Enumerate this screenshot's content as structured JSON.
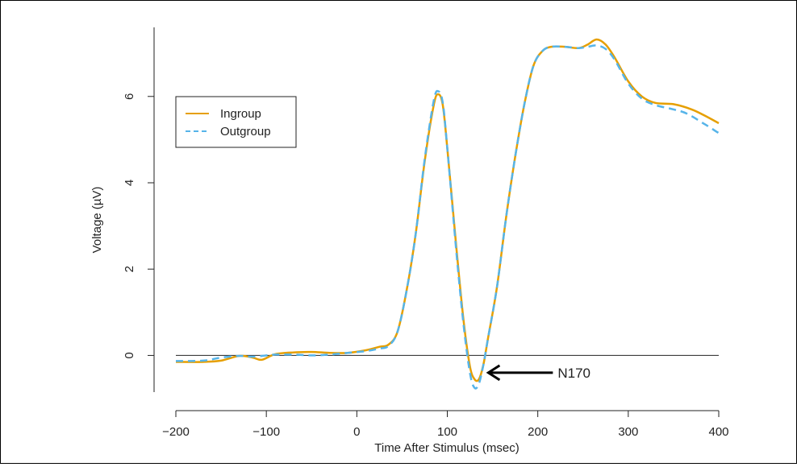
{
  "chart_data": {
    "type": "line",
    "xlabel": "Time After Stimulus (msec)",
    "ylabel": "Voltage (µV)",
    "xlim": [
      -200,
      400
    ],
    "ylim": [
      -0.85,
      7.6
    ],
    "x_ticks": [
      -200,
      -100,
      0,
      100,
      200,
      300,
      400
    ],
    "y_ticks": [
      0,
      2,
      4,
      6
    ],
    "x_tick_labels": [
      "−200",
      "−100",
      "0",
      "100",
      "200",
      "300",
      "400"
    ],
    "y_tick_labels": [
      "0",
      "2",
      "4",
      "6"
    ],
    "baseline_y": 0,
    "legend_position": "top-left",
    "annotation": {
      "text": "N170",
      "arrow_to": [
        140,
        -0.4
      ]
    },
    "series": [
      {
        "name": "Ingroup",
        "color": "#E69F00",
        "style": "solid",
        "points": [
          [
            -200,
            -0.15
          ],
          [
            -170,
            -0.15
          ],
          [
            -150,
            -0.12
          ],
          [
            -130,
            -0.01
          ],
          [
            -115,
            -0.05
          ],
          [
            -105,
            -0.1
          ],
          [
            -90,
            0.03
          ],
          [
            -70,
            0.07
          ],
          [
            -50,
            0.08
          ],
          [
            -30,
            0.06
          ],
          [
            -10,
            0.06
          ],
          [
            10,
            0.12
          ],
          [
            25,
            0.2
          ],
          [
            35,
            0.25
          ],
          [
            45,
            0.55
          ],
          [
            55,
            1.5
          ],
          [
            65,
            2.8
          ],
          [
            75,
            4.5
          ],
          [
            85,
            5.8
          ],
          [
            90,
            6.05
          ],
          [
            95,
            5.8
          ],
          [
            100,
            4.8
          ],
          [
            110,
            2.5
          ],
          [
            118,
            0.8
          ],
          [
            125,
            -0.25
          ],
          [
            130,
            -0.55
          ],
          [
            135,
            -0.55
          ],
          [
            140,
            -0.2
          ],
          [
            145,
            0.4
          ],
          [
            155,
            1.6
          ],
          [
            165,
            3.2
          ],
          [
            175,
            4.6
          ],
          [
            185,
            5.8
          ],
          [
            195,
            6.7
          ],
          [
            205,
            7.05
          ],
          [
            215,
            7.15
          ],
          [
            230,
            7.15
          ],
          [
            245,
            7.12
          ],
          [
            255,
            7.2
          ],
          [
            265,
            7.32
          ],
          [
            275,
            7.2
          ],
          [
            285,
            6.9
          ],
          [
            300,
            6.35
          ],
          [
            315,
            6.0
          ],
          [
            330,
            5.85
          ],
          [
            350,
            5.82
          ],
          [
            370,
            5.7
          ],
          [
            385,
            5.55
          ],
          [
            400,
            5.38
          ]
        ]
      },
      {
        "name": "Outgroup",
        "color": "#56B4E9",
        "style": "dashed",
        "points": [
          [
            -200,
            -0.13
          ],
          [
            -170,
            -0.12
          ],
          [
            -150,
            -0.05
          ],
          [
            -130,
            -0.01
          ],
          [
            -115,
            -0.03
          ],
          [
            -100,
            0.0
          ],
          [
            -90,
            0.02
          ],
          [
            -70,
            0.02
          ],
          [
            -50,
            0.0
          ],
          [
            -30,
            0.02
          ],
          [
            -10,
            0.06
          ],
          [
            10,
            0.1
          ],
          [
            25,
            0.16
          ],
          [
            35,
            0.22
          ],
          [
            45,
            0.55
          ],
          [
            55,
            1.5
          ],
          [
            65,
            2.8
          ],
          [
            75,
            4.55
          ],
          [
            85,
            5.9
          ],
          [
            90,
            6.12
          ],
          [
            95,
            5.85
          ],
          [
            100,
            4.8
          ],
          [
            110,
            2.4
          ],
          [
            118,
            0.7
          ],
          [
            125,
            -0.4
          ],
          [
            130,
            -0.75
          ],
          [
            135,
            -0.65
          ],
          [
            140,
            -0.2
          ],
          [
            145,
            0.4
          ],
          [
            155,
            1.6
          ],
          [
            165,
            3.2
          ],
          [
            175,
            4.6
          ],
          [
            185,
            5.8
          ],
          [
            195,
            6.7
          ],
          [
            205,
            7.05
          ],
          [
            215,
            7.15
          ],
          [
            230,
            7.15
          ],
          [
            245,
            7.12
          ],
          [
            255,
            7.15
          ],
          [
            265,
            7.18
          ],
          [
            275,
            7.1
          ],
          [
            285,
            6.85
          ],
          [
            300,
            6.3
          ],
          [
            315,
            5.95
          ],
          [
            330,
            5.8
          ],
          [
            350,
            5.7
          ],
          [
            365,
            5.6
          ],
          [
            385,
            5.35
          ],
          [
            400,
            5.15
          ]
        ]
      }
    ]
  }
}
